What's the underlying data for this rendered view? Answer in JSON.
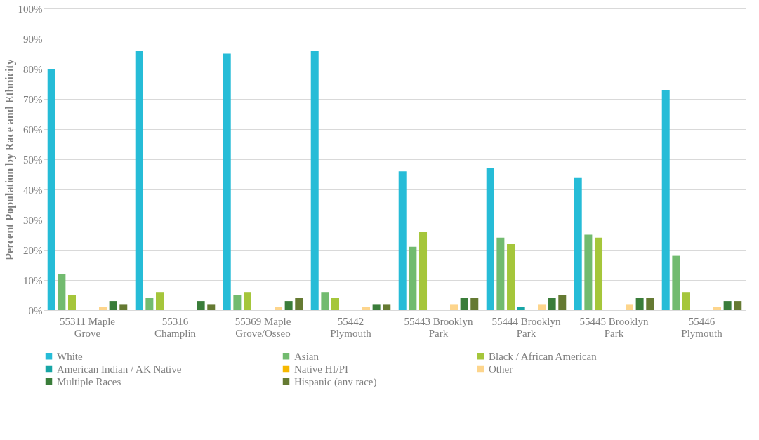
{
  "chart_data": {
    "type": "bar",
    "ylabel": "Percent Population by Race and Ethnicity",
    "categories": [
      "55311 Maple Grove",
      "55316 Champlin",
      "55369 Maple Grove/Osseo",
      "55442 Plymouth",
      "55443 Brooklyn Park",
      "55444 Brooklyn Park",
      "55445 Brooklyn Park",
      "55446 Plymouth"
    ],
    "series": [
      {
        "name": "White",
        "color": "#26bcd7",
        "values": [
          80,
          86,
          85,
          86,
          46,
          47,
          44,
          73
        ]
      },
      {
        "name": "Asian",
        "color": "#72bb6f",
        "values": [
          12,
          4,
          5,
          6,
          21,
          24,
          25,
          18
        ]
      },
      {
        "name": "Black / African American",
        "color": "#a5c63b",
        "values": [
          5,
          6,
          6,
          4,
          26,
          22,
          24,
          6
        ]
      },
      {
        "name": "American Indian / AK Native",
        "color": "#17a5a5",
        "values": [
          0,
          0,
          0,
          0,
          0,
          1,
          0,
          0
        ]
      },
      {
        "name": "Native HI/PI",
        "color": "#f6b800",
        "values": [
          0,
          0,
          0,
          0,
          0,
          0,
          0,
          0
        ]
      },
      {
        "name": "Other",
        "color": "#fdd58c",
        "values": [
          1,
          0,
          1,
          1,
          2,
          2,
          2,
          1
        ]
      },
      {
        "name": "Multiple Races",
        "color": "#3a7d3a",
        "values": [
          3,
          3,
          3,
          2,
          4,
          4,
          4,
          3
        ]
      },
      {
        "name": "Hispanic (any race)",
        "color": "#657a32",
        "values": [
          2,
          2,
          4,
          2,
          4,
          5,
          4,
          3
        ]
      }
    ],
    "ylim": [
      0,
      100
    ],
    "yticks": [
      {
        "value": 0,
        "label": "0%"
      },
      {
        "value": 10,
        "label": "10%"
      },
      {
        "value": 20,
        "label": "20%"
      },
      {
        "value": 30,
        "label": "30%"
      },
      {
        "value": 40,
        "label": "40%"
      },
      {
        "value": 50,
        "label": "50%"
      },
      {
        "value": 60,
        "label": "60%"
      },
      {
        "value": 70,
        "label": "70%"
      },
      {
        "value": 80,
        "label": "80%"
      },
      {
        "value": 90,
        "label": "90%"
      },
      {
        "value": 100,
        "label": "100%"
      }
    ],
    "grid": "y",
    "legend": "bottom"
  }
}
